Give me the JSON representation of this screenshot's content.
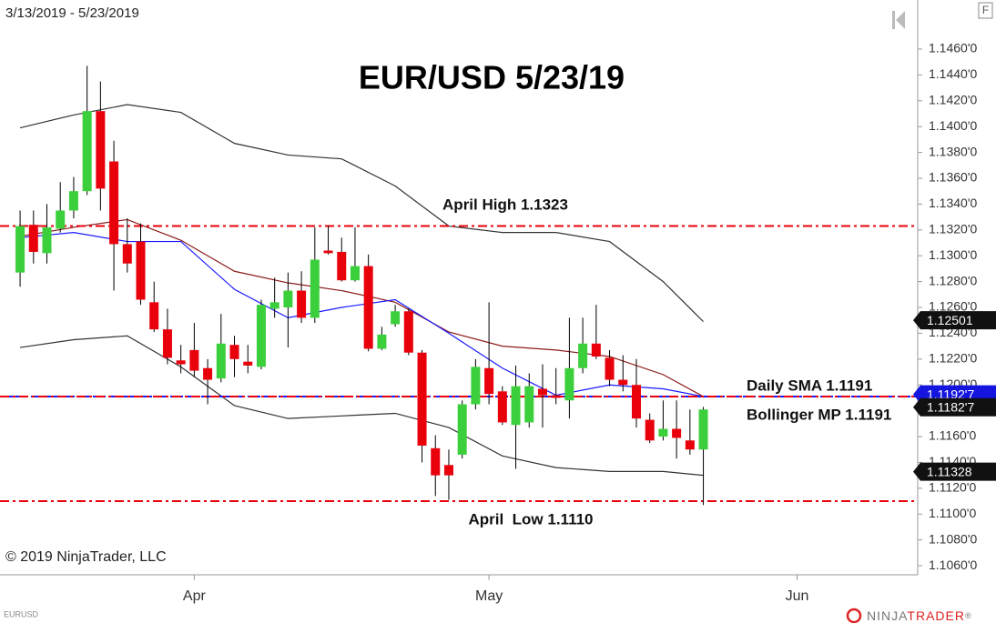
{
  "chart_data": {
    "type": "candlestick",
    "title": "EUR/USD 5/23/19",
    "subtitle": "3/13/2019 - 5/23/2019",
    "x": [
      0,
      1,
      2,
      3,
      4,
      5,
      6,
      7,
      8,
      9,
      10,
      11,
      12,
      13,
      14,
      15,
      16,
      17,
      18,
      19,
      20,
      21,
      22,
      23,
      24,
      25,
      26,
      27,
      28,
      29,
      30,
      31,
      32,
      33,
      34,
      35,
      36,
      37,
      38,
      39,
      40,
      41,
      42,
      43,
      44,
      45,
      46,
      47,
      48,
      49,
      50,
      51
    ],
    "open": [
      1.1287,
      1.1324,
      1.1302,
      1.1321,
      1.1335,
      1.135,
      1.1412,
      1.1373,
      1.1309,
      1.1311,
      1.1264,
      1.1243,
      1.1219,
      1.1227,
      1.1213,
      1.1205,
      1.1231,
      1.1218,
      1.1214,
      1.1259,
      1.126,
      1.1273,
      1.1252,
      1.1304,
      1.1303,
      1.1281,
      1.1292,
      1.1228,
      1.1247,
      1.1257,
      1.1225,
      1.1151,
      1.1138,
      1.1146,
      1.1185,
      1.1213,
      1.1195,
      1.1169,
      1.1171,
      1.1197,
      1.1192,
      1.1188,
      1.1213,
      1.1232,
      1.1221,
      1.1204,
      1.12,
      1.1173,
      1.116,
      1.1166,
      1.1157,
      1.115
    ],
    "high": [
      1.1335,
      1.1335,
      1.134,
      1.1357,
      1.1361,
      1.1447,
      1.1435,
      1.1389,
      1.1329,
      1.1325,
      1.128,
      1.1259,
      1.1231,
      1.1248,
      1.122,
      1.1255,
      1.1238,
      1.1231,
      1.1266,
      1.1283,
      1.1287,
      1.1288,
      1.1322,
      1.1323,
      1.1314,
      1.1322,
      1.1301,
      1.1245,
      1.1262,
      1.1259,
      1.1227,
      1.1161,
      1.115,
      1.1188,
      1.122,
      1.1264,
      1.1199,
      1.1215,
      1.1209,
      1.1216,
      1.1213,
      1.1252,
      1.1252,
      1.1262,
      1.1227,
      1.1223,
      1.122,
      1.1178,
      1.1188,
      1.1188,
      1.1181,
      1.1183
    ],
    "low": [
      1.1276,
      1.1294,
      1.1294,
      1.1318,
      1.1329,
      1.1347,
      1.1335,
      1.1273,
      1.1287,
      1.1262,
      1.1241,
      1.1216,
      1.1209,
      1.1206,
      1.1185,
      1.1202,
      1.1206,
      1.1209,
      1.1212,
      1.1252,
      1.1229,
      1.1248,
      1.1248,
      1.1301,
      1.128,
      1.128,
      1.1226,
      1.1227,
      1.1245,
      1.1223,
      1.114,
      1.1114,
      1.1111,
      1.1143,
      1.1181,
      1.1185,
      1.1169,
      1.1135,
      1.1167,
      1.1167,
      1.1185,
      1.1174,
      1.1209,
      1.122,
      1.1199,
      1.1195,
      1.1167,
      1.1155,
      1.1157,
      1.1143,
      1.1146,
      1.1107
    ],
    "close": [
      1.1323,
      1.1303,
      1.1322,
      1.1335,
      1.135,
      1.1412,
      1.1352,
      1.1309,
      1.1294,
      1.1266,
      1.1243,
      1.1221,
      1.1216,
      1.1211,
      1.1204,
      1.1232,
      1.122,
      1.1215,
      1.1262,
      1.1264,
      1.1273,
      1.1252,
      1.1297,
      1.1302,
      1.1281,
      1.1292,
      1.1228,
      1.1239,
      1.1257,
      1.1225,
      1.1153,
      1.113,
      1.113,
      1.1185,
      1.1214,
      1.1193,
      1.1171,
      1.1199,
      1.1199,
      1.1192,
      1.119,
      1.1213,
      1.1232,
      1.1222,
      1.1204,
      1.12,
      1.1174,
      1.1157,
      1.1166,
      1.1159,
      1.115,
      1.1181
    ],
    "up_color": "#3ccf3c",
    "down_color": "#e8000b",
    "wick_color": "#000000",
    "series": [
      {
        "color": "#333333",
        "x": [
          0,
          4,
          8,
          12,
          16,
          20,
          24,
          28,
          32,
          36,
          40,
          44,
          48,
          51
        ],
        "values": [
          1.1399,
          1.1409,
          1.1417,
          1.1411,
          1.1387,
          1.1378,
          1.1375,
          1.1354,
          1.1323,
          1.1318,
          1.1318,
          1.1311,
          1.128,
          1.1249
        ]
      },
      {
        "color": "#333333",
        "x": [
          0,
          4,
          8,
          12,
          16,
          20,
          24,
          28,
          32,
          36,
          40,
          44,
          48,
          51
        ],
        "values": [
          1.1229,
          1.1235,
          1.1238,
          1.1214,
          1.1184,
          1.1174,
          1.1176,
          1.1178,
          1.1167,
          1.1145,
          1.1136,
          1.1133,
          1.1133,
          1.113
        ]
      },
      {
        "color": "#8b1a1a",
        "x": [
          0,
          4,
          8,
          12,
          16,
          20,
          24,
          28,
          32,
          36,
          40,
          44,
          48,
          51
        ],
        "values": [
          1.1315,
          1.1322,
          1.1328,
          1.1312,
          1.1288,
          1.1279,
          1.1273,
          1.1264,
          1.1241,
          1.123,
          1.1227,
          1.1222,
          1.1208,
          1.1191
        ]
      },
      {
        "color": "#1a1aff",
        "x": [
          0,
          4,
          8,
          12,
          16,
          20,
          24,
          28,
          32,
          36,
          40,
          44,
          48,
          51
        ],
        "values": [
          1.1314,
          1.1318,
          1.1311,
          1.1311,
          1.1274,
          1.1252,
          1.126,
          1.1266,
          1.124,
          1.1213,
          1.1192,
          1.12,
          1.1197,
          1.1191
        ]
      }
    ],
    "hlines": [
      {
        "value": 1.1323,
        "color": "#e8000b"
      },
      {
        "value": 1.111,
        "color": "#e8000b"
      },
      {
        "value": 1.1191,
        "color": "#1a1aff"
      },
      {
        "value": 1.1191,
        "color": "#e8000b"
      }
    ],
    "annotations": [
      "April High 1.1323",
      "April  Low 1.1110",
      "Daily SMA 1.1191",
      "Bollinger MP 1.1191"
    ],
    "price_markers": [
      {
        "value": 1.12501,
        "color": "#111111"
      },
      {
        "value": 1.11927,
        "label": "1.1192'7",
        "color": "#1515e0"
      },
      {
        "value": 1.11827,
        "label": "1.1182'7",
        "color": "#111111"
      },
      {
        "value": 1.11328,
        "color": "#111111"
      }
    ],
    "xlim": [
      -1.5,
      67
    ],
    "xticks": [
      {
        "value": 13,
        "label": "Apr"
      },
      {
        "value": 35,
        "label": "May"
      },
      {
        "value": 58,
        "label": "Jun"
      }
    ],
    "ylim": [
      1.1053,
      1.1498
    ],
    "yticks": [
      {
        "value": 1.146,
        "label": "1.1460'0"
      },
      {
        "value": 1.144,
        "label": "1.1440'0"
      },
      {
        "value": 1.142,
        "label": "1.1420'0"
      },
      {
        "value": 1.14,
        "label": "1.1400'0"
      },
      {
        "value": 1.138,
        "label": "1.1380'0"
      },
      {
        "value": 1.136,
        "label": "1.1360'0"
      },
      {
        "value": 1.134,
        "label": "1.1340'0"
      },
      {
        "value": 1.132,
        "label": "1.1320'0"
      },
      {
        "value": 1.13,
        "label": "1.1300'0"
      },
      {
        "value": 1.128,
        "label": "1.1280'0"
      },
      {
        "value": 1.126,
        "label": "1.1260'0"
      },
      {
        "value": 1.124,
        "label": "1.1240'0"
      },
      {
        "value": 1.122,
        "label": "1.1220'0"
      },
      {
        "value": 1.12,
        "label": "1.1200'0"
      },
      {
        "value": 1.118,
        "label": "1.1180'0"
      },
      {
        "value": 1.116,
        "label": "1.1160'0"
      },
      {
        "value": 1.114,
        "label": "1.1140'0"
      },
      {
        "value": 1.112,
        "label": "1.1120'0"
      },
      {
        "value": 1.11,
        "label": "1.1100'0"
      },
      {
        "value": 1.108,
        "label": "1.1080'0"
      },
      {
        "value": 1.106,
        "label": "1.1060'0"
      }
    ]
  },
  "ui": {
    "copyright": "© 2019 NinjaTrader, LLC",
    "symbol": "EURUSD",
    "button": "F",
    "logo": [
      "NINJA",
      "TRADER",
      "®"
    ]
  }
}
